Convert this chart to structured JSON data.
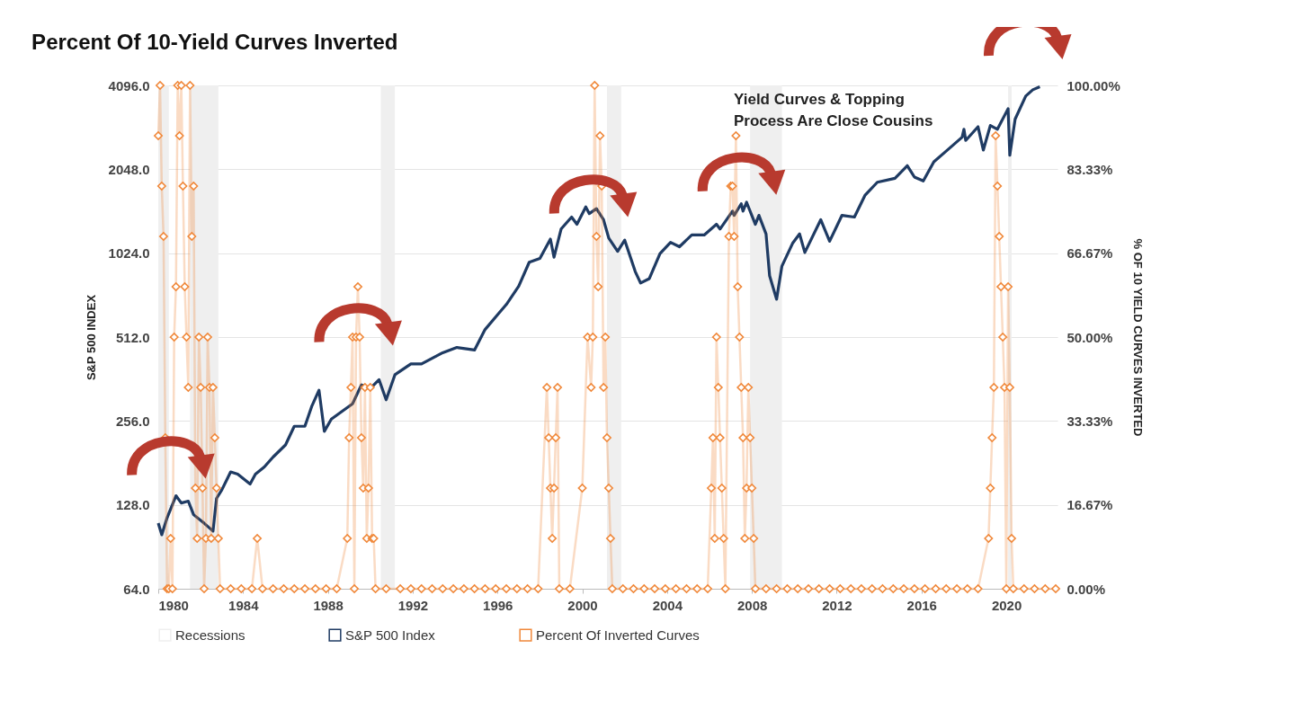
{
  "chart_data": {
    "type": "line",
    "title": "Percent Of 10-Yield Curves Inverted",
    "ylabel": "S&P 500 INDEX",
    "y2label": "% OF 10 YIELD CURVES INVERTED",
    "annotations": [
      "Yield Curves & Topping Process Are Close Cousins"
    ],
    "xlim": [
      "1980-01",
      "2022-06"
    ],
    "xticks": [
      "1980",
      "1984",
      "1988",
      "1992",
      "1996",
      "2000",
      "2004",
      "2008",
      "2012",
      "2016",
      "2020"
    ],
    "ylim": [
      64,
      4096
    ],
    "yticks": [
      {
        "value": 64,
        "label": "64.0"
      },
      {
        "value": 128,
        "label": "128.0"
      },
      {
        "value": 256,
        "label": "256.0"
      },
      {
        "value": 512,
        "label": "512.0"
      },
      {
        "value": 1024,
        "label": "1024.0"
      },
      {
        "value": 2048,
        "label": "2048.0"
      },
      {
        "value": 4096,
        "label": "4096.0"
      }
    ],
    "y2lim": [
      0,
      100
    ],
    "y2ticks": [
      {
        "value": 0,
        "label": "0.00%"
      },
      {
        "value": 16.67,
        "label": "16.67%"
      },
      {
        "value": 33.33,
        "label": "33.33%"
      },
      {
        "value": 50,
        "label": "50.00%"
      },
      {
        "value": 66.67,
        "label": "66.67%"
      },
      {
        "value": 83.33,
        "label": "83.33%"
      },
      {
        "value": 100,
        "label": "100.00%"
      }
    ],
    "log": "y",
    "grid": "y",
    "legend": "bottom",
    "bands": [
      {
        "axis": "x",
        "from": "1980-01",
        "to": "1980-07",
        "label": "Recessions",
        "color": "#efefef"
      },
      {
        "axis": "x",
        "from": "1981-07",
        "to": "1982-11",
        "color": "#efefef"
      },
      {
        "axis": "x",
        "from": "1990-07",
        "to": "1991-03",
        "color": "#efefef"
      },
      {
        "axis": "x",
        "from": "2001-03",
        "to": "2001-11",
        "color": "#efefef"
      },
      {
        "axis": "x",
        "from": "2007-12",
        "to": "2009-06",
        "color": "#efefef"
      },
      {
        "axis": "x",
        "from": "2020-02",
        "to": "2020-04",
        "color": "#efefef"
      }
    ],
    "series": [
      {
        "name": "S&P 500 Index",
        "color": "#1f3b63",
        "axis": "y",
        "marker": "none",
        "x": [
          "1980-01",
          "1980-03",
          "1980-06",
          "1980-11",
          "1981-02",
          "1981-06",
          "1981-09",
          "1982-03",
          "1982-08",
          "1982-10",
          "1983-01",
          "1983-06",
          "1983-10",
          "1984-05",
          "1984-08",
          "1985-01",
          "1985-06",
          "1986-01",
          "1986-06",
          "1986-12",
          "1987-04",
          "1987-08",
          "1987-11",
          "1988-03",
          "1988-10",
          "1989-03",
          "1989-08",
          "1990-01",
          "1990-06",
          "1990-10",
          "1991-03",
          "1991-12",
          "1992-06",
          "1993-06",
          "1994-02",
          "1994-12",
          "1995-06",
          "1996-01",
          "1996-06",
          "1997-01",
          "1997-07",
          "1998-01",
          "1998-07",
          "1998-09",
          "1999-01",
          "1999-07",
          "1999-10",
          "2000-03",
          "2000-05",
          "2000-09",
          "2001-01",
          "2001-04",
          "2001-09",
          "2002-01",
          "2002-07",
          "2002-10",
          "2003-03",
          "2003-09",
          "2004-03",
          "2004-08",
          "2005-03",
          "2005-10",
          "2006-05",
          "2006-07",
          "2007-02",
          "2007-03",
          "2007-07",
          "2007-08",
          "2007-10",
          "2008-03",
          "2008-05",
          "2008-09",
          "2008-11",
          "2009-03",
          "2009-06",
          "2009-12",
          "2010-04",
          "2010-07",
          "2011-04",
          "2011-09",
          "2012-04",
          "2012-11",
          "2013-05",
          "2013-12",
          "2014-10",
          "2015-05",
          "2015-09",
          "2016-02",
          "2016-08",
          "2017-03",
          "2017-12",
          "2018-01",
          "2018-02",
          "2018-09",
          "2018-12",
          "2019-04",
          "2019-08",
          "2020-02",
          "2020-03",
          "2020-06",
          "2020-12",
          "2021-04",
          "2021-08"
        ],
        "values": [
          110,
          100,
          115,
          138,
          130,
          132,
          118,
          110,
          103,
          135,
          145,
          168,
          165,
          152,
          165,
          175,
          190,
          210,
          245,
          245,
          290,
          330,
          235,
          260,
          280,
          295,
          345,
          335,
          360,
          305,
          375,
          410,
          410,
          450,
          470,
          460,
          545,
          615,
          670,
          780,
          950,
          980,
          1150,
          990,
          1250,
          1380,
          1300,
          1500,
          1420,
          1480,
          1350,
          1160,
          1040,
          1140,
          880,
          800,
          830,
          1020,
          1120,
          1080,
          1190,
          1190,
          1300,
          1250,
          1450,
          1400,
          1540,
          1450,
          1560,
          1300,
          1400,
          1200,
          850,
          700,
          920,
          1110,
          1200,
          1030,
          1350,
          1130,
          1400,
          1380,
          1650,
          1840,
          1900,
          2110,
          1920,
          1860,
          2180,
          2380,
          2670,
          2850,
          2600,
          2910,
          2400,
          2940,
          2850,
          3380,
          2300,
          3100,
          3750,
          3950,
          4050
        ]
      },
      {
        "name": "Percent Of Inverted Curves",
        "color": "#f0883a",
        "axis": "y2",
        "marker": "diamond",
        "x": [
          "1980-01",
          "1980-02",
          "1980-03",
          "1980-04",
          "1980-05",
          "1980-06",
          "1980-07",
          "1980-08",
          "1980-09",
          "1980-10",
          "1980-11",
          "1980-12",
          "1981-01",
          "1981-02",
          "1981-03",
          "1981-04",
          "1981-05",
          "1981-06",
          "1981-07",
          "1981-08",
          "1981-09",
          "1981-10",
          "1981-11",
          "1981-12",
          "1982-01",
          "1982-02",
          "1982-03",
          "1982-04",
          "1982-05",
          "1982-06",
          "1982-07",
          "1982-08",
          "1982-09",
          "1982-10",
          "1982-11",
          "1982-12",
          "1983-06",
          "1983-12",
          "1984-06",
          "1984-09",
          "1984-12",
          "1985-06",
          "1985-12",
          "1986-06",
          "1986-12",
          "1987-06",
          "1987-12",
          "1988-06",
          "1988-12",
          "1989-01",
          "1989-02",
          "1989-03",
          "1989-04",
          "1989-05",
          "1989-06",
          "1989-07",
          "1989-08",
          "1989-09",
          "1989-10",
          "1989-11",
          "1989-12",
          "1990-01",
          "1990-02",
          "1990-03",
          "1990-04",
          "1990-10",
          "1991-06",
          "1991-12",
          "1992-06",
          "1992-12",
          "1993-06",
          "1993-12",
          "1994-06",
          "1994-12",
          "1995-06",
          "1995-12",
          "1996-06",
          "1996-12",
          "1997-06",
          "1997-12",
          "1998-05",
          "1998-06",
          "1998-07",
          "1998-08",
          "1998-09",
          "1998-10",
          "1998-11",
          "1998-12",
          "1999-06",
          "2000-01",
          "2000-04",
          "2000-06",
          "2000-07",
          "2000-08",
          "2000-09",
          "2000-10",
          "2000-11",
          "2000-12",
          "2001-01",
          "2001-02",
          "2001-03",
          "2001-04",
          "2001-05",
          "2001-06",
          "2001-12",
          "2002-06",
          "2002-12",
          "2003-06",
          "2003-12",
          "2004-06",
          "2004-12",
          "2005-06",
          "2005-12",
          "2006-02",
          "2006-03",
          "2006-04",
          "2006-05",
          "2006-06",
          "2006-07",
          "2006-08",
          "2006-09",
          "2006-10",
          "2006-12",
          "2007-01",
          "2007-02",
          "2007-03",
          "2007-04",
          "2007-05",
          "2007-06",
          "2007-07",
          "2007-08",
          "2007-09",
          "2007-10",
          "2007-11",
          "2007-12",
          "2008-01",
          "2008-02",
          "2008-03",
          "2008-09",
          "2009-03",
          "2009-09",
          "2010-03",
          "2010-09",
          "2011-03",
          "2011-09",
          "2012-03",
          "2012-09",
          "2013-03",
          "2013-09",
          "2014-03",
          "2014-09",
          "2015-03",
          "2015-09",
          "2016-03",
          "2016-09",
          "2017-03",
          "2017-09",
          "2018-03",
          "2018-09",
          "2019-03",
          "2019-04",
          "2019-05",
          "2019-06",
          "2019-07",
          "2019-08",
          "2019-09",
          "2019-10",
          "2019-11",
          "2019-12",
          "2020-01",
          "2020-02",
          "2020-03",
          "2020-04",
          "2020-05",
          "2020-11",
          "2021-05",
          "2021-11",
          "2022-05"
        ],
        "values": [
          90,
          100,
          80,
          70,
          30,
          0,
          0,
          10,
          0,
          50,
          60,
          100,
          90,
          100,
          80,
          60,
          50,
          40,
          100,
          70,
          80,
          20,
          10,
          50,
          40,
          20,
          0,
          10,
          50,
          40,
          10,
          40,
          30,
          20,
          10,
          0,
          0,
          0,
          0,
          10,
          0,
          0,
          0,
          0,
          0,
          0,
          0,
          0,
          10,
          30,
          40,
          50,
          0,
          50,
          60,
          50,
          30,
          20,
          40,
          10,
          20,
          40,
          10,
          10,
          0,
          0,
          0,
          0,
          0,
          0,
          0,
          0,
          0,
          0,
          0,
          0,
          0,
          0,
          0,
          0,
          40,
          30,
          20,
          10,
          20,
          30,
          40,
          0,
          0,
          20,
          50,
          40,
          50,
          100,
          70,
          60,
          90,
          80,
          40,
          50,
          30,
          20,
          10,
          0,
          0,
          0,
          0,
          0,
          0,
          0,
          0,
          0,
          0,
          20,
          30,
          10,
          50,
          40,
          30,
          20,
          10,
          0,
          70,
          80,
          80,
          70,
          90,
          60,
          50,
          40,
          30,
          10,
          20,
          40,
          30,
          20,
          10,
          0,
          0,
          0,
          0,
          0,
          0,
          0,
          0,
          0,
          0,
          0,
          0,
          0,
          0,
          0,
          0,
          0,
          0,
          0,
          0,
          0,
          0,
          10,
          20,
          30,
          40,
          90,
          80,
          70,
          60,
          50,
          40,
          0,
          60,
          40,
          10,
          0,
          0,
          0,
          0,
          0
        ]
      }
    ]
  }
}
